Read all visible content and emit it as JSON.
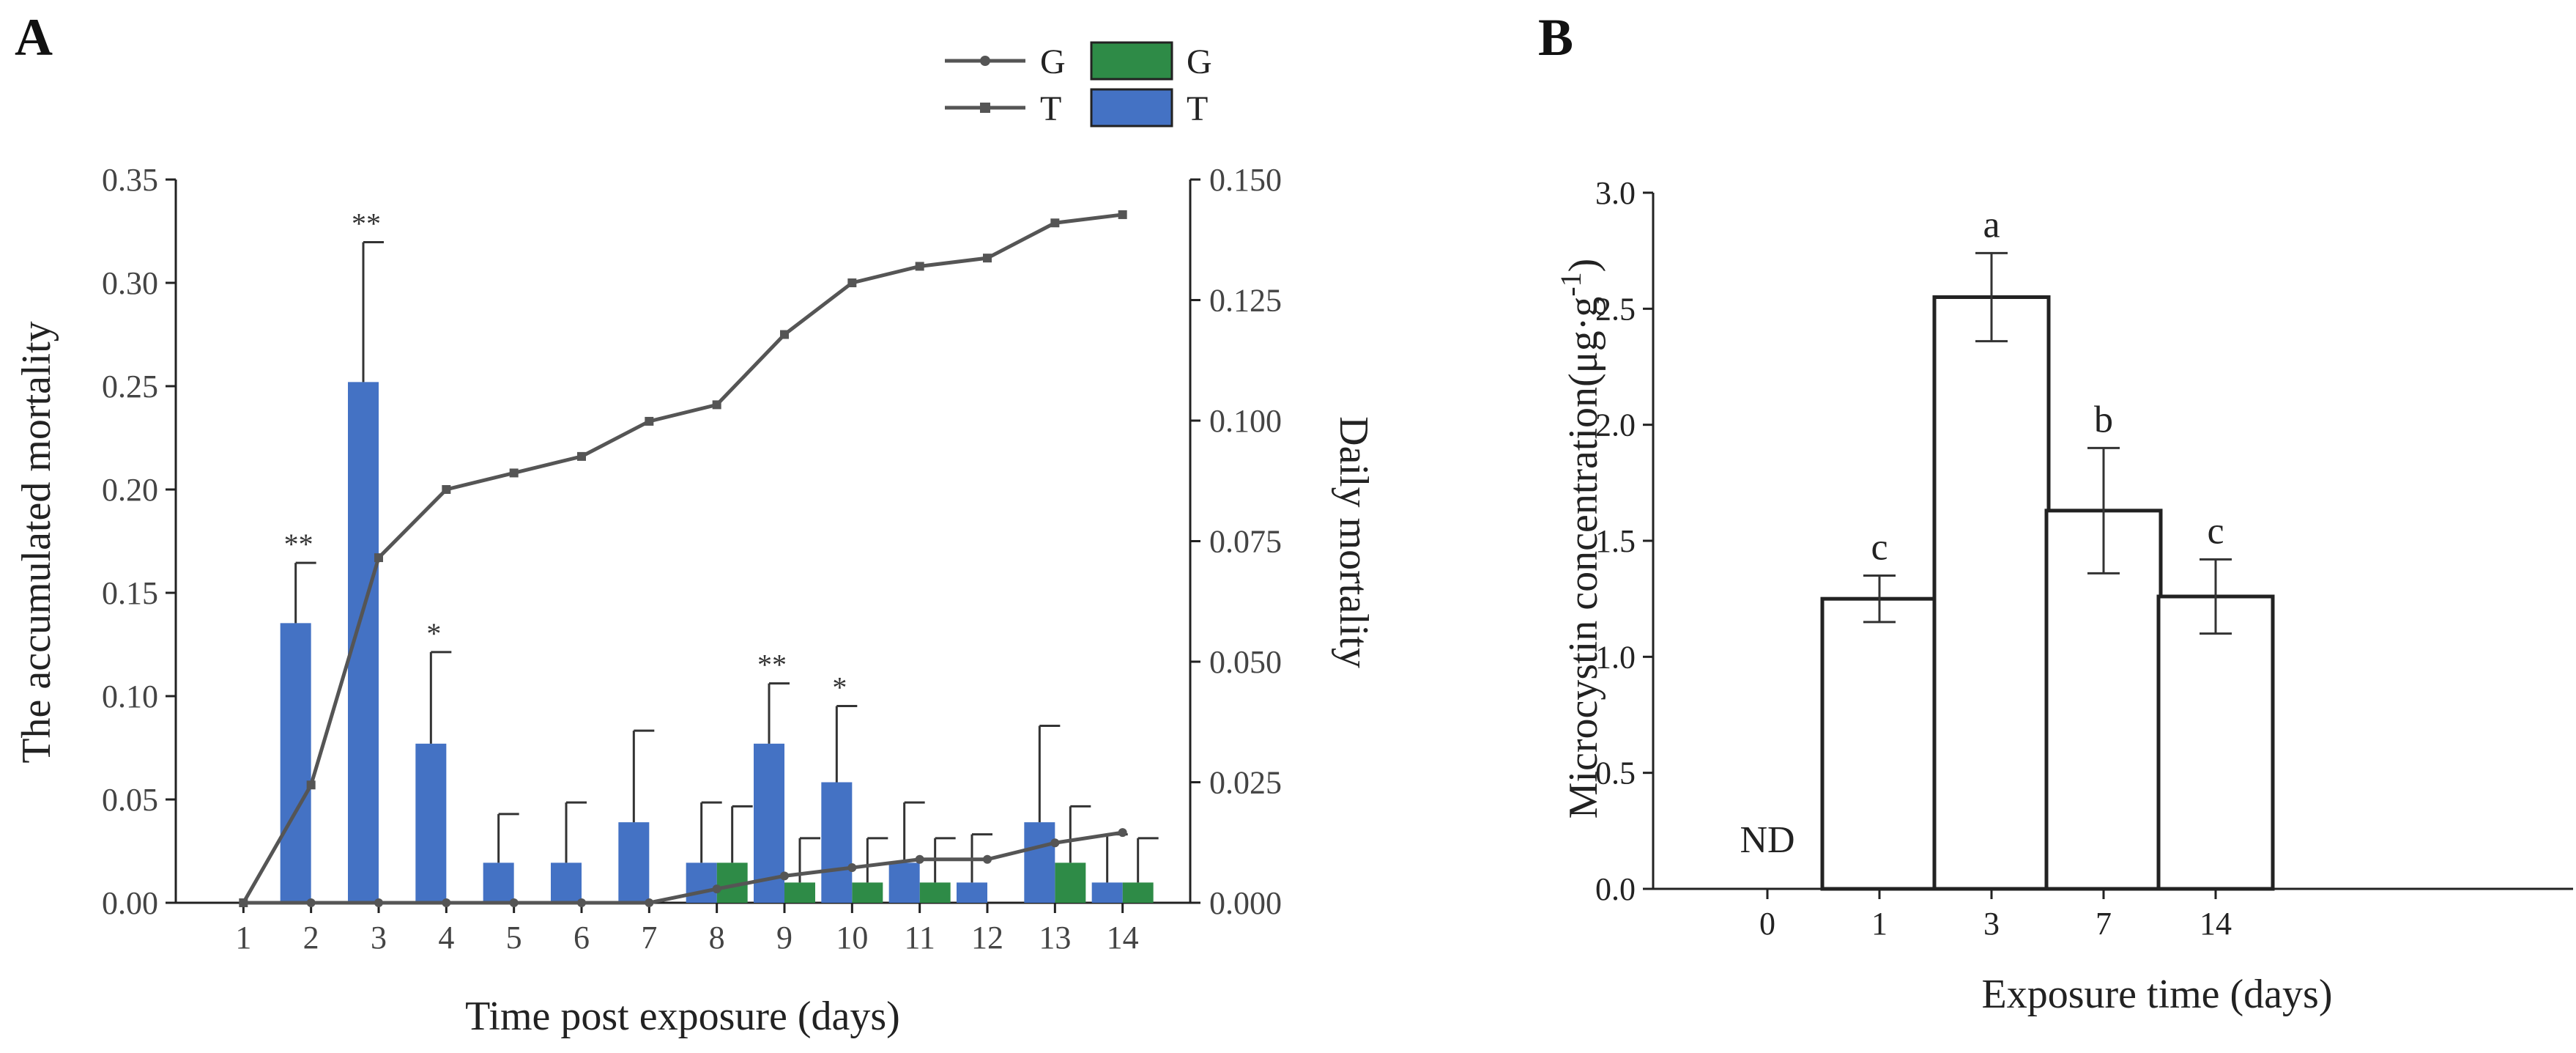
{
  "colors": {
    "G": "#2e8b47",
    "T": "#4472c4",
    "line": "#555555",
    "bar_b": "#ffffff"
  },
  "chart_data": [
    {
      "panel": "A",
      "type": "bar",
      "title": "",
      "xlabel": "Time post exposure (days)",
      "ylabel": "The accumulated mortality",
      "y2label": "Daily mortality",
      "categories": [
        "1",
        "2",
        "3",
        "4",
        "5",
        "6",
        "7",
        "8",
        "9",
        "10",
        "11",
        "12",
        "13",
        "14"
      ],
      "ylim": [
        0,
        0.35
      ],
      "yticks": [
        "0.00",
        "0.05",
        "0.10",
        "0.15",
        "0.20",
        "0.25",
        "0.30",
        "0.35"
      ],
      "y2lim": [
        0,
        0.15
      ],
      "y2ticks": [
        "0.000",
        "0.025",
        "0.050",
        "0.075",
        "0.100",
        "0.125",
        "0.150"
      ],
      "legend": {
        "position": "top-right",
        "line_entries": [
          {
            "label": "G",
            "marker": "circle"
          },
          {
            "label": "T",
            "marker": "square"
          }
        ],
        "bar_entries": [
          {
            "label": "G"
          },
          {
            "label": "T"
          }
        ]
      },
      "lines": [
        {
          "name": "G",
          "axis": "left",
          "marker": "circle",
          "values": [
            0,
            0,
            0,
            0,
            0,
            0,
            0,
            0.0067,
            0.013,
            0.017,
            0.021,
            0.021,
            0.029,
            0.034
          ]
        },
        {
          "name": "T",
          "axis": "left",
          "marker": "square",
          "values": [
            0,
            0.057,
            0.167,
            0.2,
            0.208,
            0.216,
            0.233,
            0.241,
            0.275,
            0.3,
            0.308,
            0.312,
            0.329,
            0.333
          ]
        }
      ],
      "bars": [
        {
          "name": "G",
          "axis": "right",
          "values": [
            0,
            0,
            0,
            0,
            0,
            0,
            0,
            0.0083,
            0.0042,
            0.0042,
            0.0042,
            0,
            0.0083,
            0.0042
          ],
          "errors": [
            0,
            0,
            0,
            0,
            0,
            0,
            0,
            0.0117,
            0.0092,
            0.0092,
            0.0092,
            0,
            0.0117,
            0.0092
          ]
        },
        {
          "name": "T",
          "axis": "right",
          "values": [
            0,
            0.058,
            0.108,
            0.033,
            0.0083,
            0.0083,
            0.0167,
            0.0083,
            0.033,
            0.025,
            0.0083,
            0.0042,
            0.0167,
            0.0042
          ],
          "errors": [
            0,
            0.0125,
            0.029,
            0.019,
            0.0101,
            0.0125,
            0.019,
            0.0125,
            0.0125,
            0.0158,
            0.0125,
            0.01,
            0.02,
            0.01
          ]
        }
      ],
      "annotations": [
        {
          "category": "2",
          "text": "**"
        },
        {
          "category": "3",
          "text": "**"
        },
        {
          "category": "4",
          "text": "*"
        },
        {
          "category": "9",
          "text": "**"
        },
        {
          "category": "10",
          "text": "*"
        }
      ]
    },
    {
      "panel": "B",
      "type": "bar",
      "title": "",
      "xlabel": "Exposure time (days)",
      "ylabel_main": "Microcystin concentration",
      "ylabel_unit_open": "(",
      "ylabel_unit_base": "μg·g",
      "ylabel_unit_sup": "-1",
      "ylabel_unit_close": ")",
      "categories": [
        "0",
        "1",
        "3",
        "7",
        "14"
      ],
      "values": [
        0,
        1.25,
        2.55,
        1.63,
        1.26
      ],
      "errors": [
        0,
        0.1,
        0.19,
        0.27,
        0.16
      ],
      "letters": [
        "",
        "c",
        "a",
        "b",
        "c"
      ],
      "nd_label": "ND",
      "ylim": [
        0,
        3.0
      ],
      "yticks": [
        "0.0",
        "0.5",
        "1.0",
        "1.5",
        "2.0",
        "2.5",
        "3.0"
      ]
    }
  ]
}
